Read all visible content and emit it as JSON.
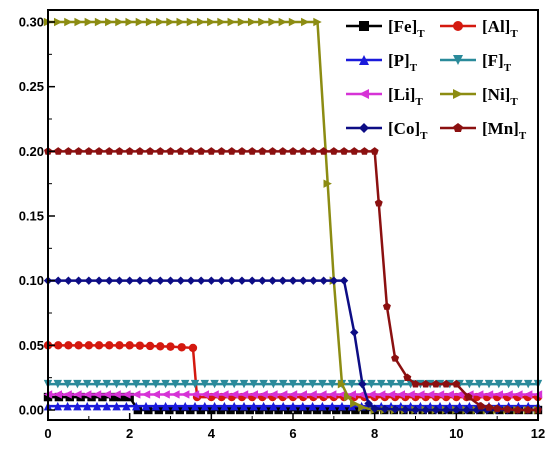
{
  "chart_data": {
    "type": "line",
    "xlim": [
      0,
      12
    ],
    "ylim": [
      0,
      0.3
    ],
    "xticks": [
      "0",
      "2",
      "4",
      "6",
      "8",
      "10",
      "12"
    ],
    "yticks": [
      "0.00",
      "0.05",
      "0.10",
      "0.15",
      "0.20",
      "0.25",
      "0.30"
    ],
    "grid": false,
    "legend_position": "top-right",
    "series": [
      {
        "name": "[Fe]",
        "subscript": "T",
        "color": "#000000",
        "marker": "square",
        "x": [
          0,
          0.8,
          1.6,
          2.0,
          2.2,
          4.0,
          8.0,
          12.0
        ],
        "y": [
          0.01,
          0.01,
          0.01,
          0.01,
          0.0,
          0.0,
          0.0,
          0.0
        ]
      },
      {
        "name": "[Al]",
        "subscript": "T",
        "color": "#d4190f",
        "marker": "circle",
        "x": [
          0,
          1.0,
          2.0,
          3.0,
          3.55,
          3.65,
          4.0,
          6.0,
          8.0,
          10.0,
          12.0
        ],
        "y": [
          0.05,
          0.05,
          0.05,
          0.049,
          0.048,
          0.01,
          0.01,
          0.01,
          0.01,
          0.01,
          0.01
        ]
      },
      {
        "name": "[P]",
        "subscript": "T",
        "color": "#1a1adb",
        "marker": "triangle-up",
        "x": [
          0,
          12
        ],
        "y": [
          0.003,
          0.003
        ]
      },
      {
        "name": "[F]",
        "subscript": "T",
        "color": "#2a8a9a",
        "marker": "triangle-down",
        "x": [
          0,
          12
        ],
        "y": [
          0.02,
          0.02
        ]
      },
      {
        "name": "[Li]",
        "subscript": "T",
        "color": "#d633d6",
        "marker": "triangle-left",
        "x": [
          0,
          12
        ],
        "y": [
          0.012,
          0.012
        ]
      },
      {
        "name": "[Ni]",
        "subscript": "T",
        "color": "#8c8c12",
        "marker": "triangle-right",
        "x": [
          0,
          1,
          2,
          3,
          4,
          5,
          6,
          6.6,
          6.85,
          7.0,
          7.2,
          7.35,
          7.5,
          7.7,
          8.0,
          8.5,
          9,
          10,
          11,
          12
        ],
        "y": [
          0.3,
          0.3,
          0.3,
          0.3,
          0.3,
          0.3,
          0.3,
          0.3,
          0.175,
          0.1,
          0.02,
          0.01,
          0.005,
          0.002,
          0.0,
          0.0,
          0.0,
          0.0,
          0.0,
          0.0
        ]
      },
      {
        "name": "[Co]",
        "subscript": "T",
        "color": "#0d0d85",
        "marker": "diamond",
        "x": [
          0,
          1,
          2,
          3,
          4,
          5,
          6,
          7.0,
          7.25,
          7.5,
          7.7,
          7.85,
          8.0,
          9,
          10,
          11,
          12
        ],
        "y": [
          0.1,
          0.1,
          0.1,
          0.1,
          0.1,
          0.1,
          0.1,
          0.1,
          0.1,
          0.06,
          0.02,
          0.005,
          0.001,
          0.0,
          0.0,
          0.0,
          0.0
        ]
      },
      {
        "name": "[Mn]",
        "subscript": "T",
        "color": "#8b1010",
        "marker": "pentagon",
        "x": [
          0,
          1,
          2,
          3,
          4,
          5,
          6,
          7,
          8.0,
          8.1,
          8.3,
          8.5,
          8.8,
          9.0,
          9.5,
          10.0,
          10.3,
          10.6,
          11.0,
          11.5,
          12.0
        ],
        "y": [
          0.2,
          0.2,
          0.2,
          0.2,
          0.2,
          0.2,
          0.2,
          0.2,
          0.2,
          0.16,
          0.08,
          0.04,
          0.025,
          0.02,
          0.02,
          0.02,
          0.01,
          0.003,
          0.001,
          0.0,
          0.0
        ]
      }
    ]
  }
}
